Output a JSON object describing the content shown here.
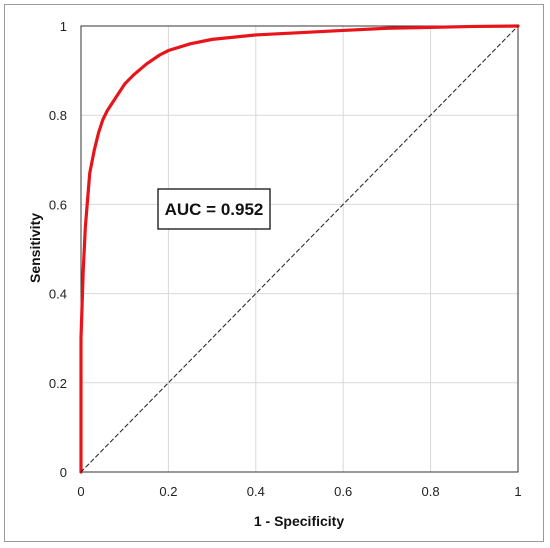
{
  "chart_data": {
    "type": "line",
    "xlabel": "1 - Specificity",
    "ylabel": "Sensitivity",
    "xlim": [
      0,
      1
    ],
    "ylim": [
      0,
      1
    ],
    "grid": true,
    "x_ticks": [
      "0",
      "0.2",
      "0.4",
      "0.6",
      "0.8",
      "1"
    ],
    "y_ticks": [
      "0",
      "0.2",
      "0.4",
      "0.6",
      "0.8",
      "1"
    ],
    "annotation": "AUC = 0.952",
    "series": [
      {
        "color": "#e8141b",
        "style": "solid",
        "x": [
          0,
          0.0,
          0.005,
          0.01,
          0.02,
          0.03,
          0.04,
          0.05,
          0.06,
          0.08,
          0.1,
          0.12,
          0.15,
          0.18,
          0.2,
          0.25,
          0.3,
          0.4,
          0.5,
          0.6,
          0.7,
          0.8,
          0.9,
          1.0
        ],
        "y": [
          0,
          0.3,
          0.45,
          0.55,
          0.67,
          0.72,
          0.76,
          0.79,
          0.81,
          0.84,
          0.87,
          0.89,
          0.915,
          0.935,
          0.945,
          0.96,
          0.97,
          0.98,
          0.985,
          0.99,
          0.995,
          0.997,
          0.999,
          1.0
        ]
      },
      {
        "color": "#222222",
        "style": "dashed",
        "x": [
          0,
          1
        ],
        "y": [
          0,
          1
        ]
      }
    ]
  }
}
